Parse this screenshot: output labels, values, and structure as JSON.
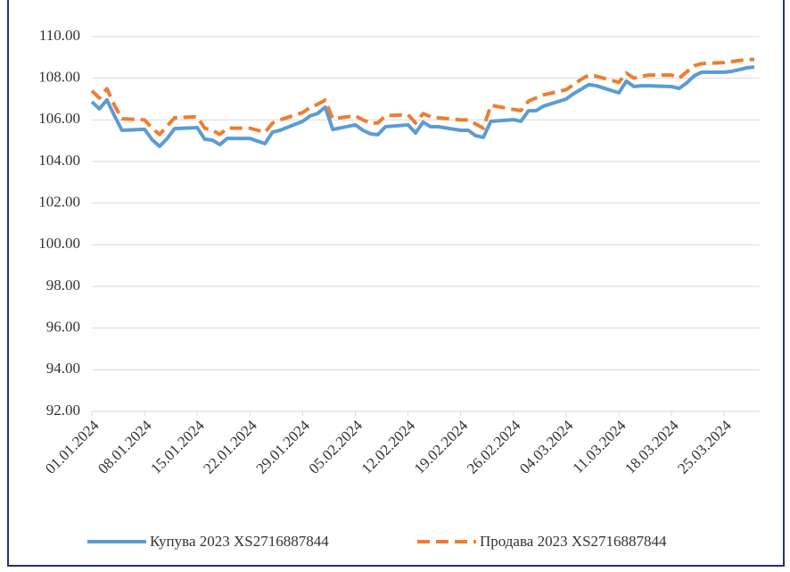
{
  "chart_data": {
    "type": "line",
    "x": [
      "01.01.2024",
      "02.01.2024",
      "03.01.2024",
      "04.01.2024",
      "05.01.2024",
      "08.01.2024",
      "09.01.2024",
      "10.01.2024",
      "11.01.2024",
      "12.01.2024",
      "15.01.2024",
      "16.01.2024",
      "17.01.2024",
      "18.01.2024",
      "19.01.2024",
      "22.01.2024",
      "23.01.2024",
      "24.01.2024",
      "25.01.2024",
      "26.01.2024",
      "29.01.2024",
      "30.01.2024",
      "31.01.2024",
      "01.02.2024",
      "02.02.2024",
      "05.02.2024",
      "06.02.2024",
      "07.02.2024",
      "08.02.2024",
      "09.02.2024",
      "12.02.2024",
      "13.02.2024",
      "14.02.2024",
      "15.02.2024",
      "16.02.2024",
      "19.02.2024",
      "20.02.2024",
      "21.02.2024",
      "22.02.2024",
      "23.02.2024",
      "26.02.2024",
      "27.02.2024",
      "28.02.2024",
      "29.02.2024",
      "01.03.2024",
      "04.03.2024",
      "05.03.2024",
      "06.03.2024",
      "07.03.2024",
      "08.03.2024",
      "11.03.2024",
      "12.03.2024",
      "13.03.2024",
      "14.03.2024",
      "15.03.2024",
      "18.03.2024",
      "19.03.2024",
      "20.03.2024",
      "21.03.2024",
      "22.03.2024",
      "25.03.2024",
      "26.03.2024",
      "27.03.2024",
      "28.03.2024",
      "29.03.2024"
    ],
    "series": [
      {
        "name": "Купува 2023 XS2716887844",
        "color": "#5b9bd5",
        "dash": false,
        "values": [
          106.87,
          106.53,
          106.96,
          106.2,
          105.5,
          105.55,
          105.05,
          104.73,
          105.1,
          105.58,
          105.63,
          105.07,
          105.03,
          104.81,
          105.11,
          105.11,
          104.98,
          104.86,
          105.41,
          105.5,
          105.93,
          106.19,
          106.31,
          106.61,
          105.54,
          105.76,
          105.5,
          105.33,
          105.29,
          105.67,
          105.76,
          105.37,
          105.89,
          105.67,
          105.67,
          105.5,
          105.5,
          105.24,
          105.16,
          105.93,
          106.01,
          105.93,
          106.44,
          106.44,
          106.66,
          107.0,
          107.26,
          107.47,
          107.69,
          107.64,
          107.3,
          107.86,
          107.6,
          107.64,
          107.64,
          107.6,
          107.51,
          107.77,
          108.11,
          108.29,
          108.29,
          108.33,
          108.41,
          108.5,
          108.54
        ]
      },
      {
        "name": "Продава 2023 XS2716887844",
        "color": "#ed7d31",
        "dash": true,
        "values": [
          107.4,
          107.05,
          107.5,
          106.7,
          106.05,
          106.0,
          105.6,
          105.3,
          105.7,
          106.1,
          106.15,
          105.6,
          105.5,
          105.3,
          105.6,
          105.6,
          105.5,
          105.4,
          105.85,
          106.0,
          106.35,
          106.6,
          106.75,
          106.95,
          106.05,
          106.2,
          106.0,
          105.85,
          105.85,
          106.2,
          106.25,
          105.85,
          106.3,
          106.15,
          106.1,
          106.0,
          106.0,
          105.8,
          105.6,
          106.7,
          106.5,
          106.45,
          106.9,
          107.05,
          107.2,
          107.45,
          107.7,
          107.95,
          108.15,
          108.1,
          107.8,
          108.25,
          108.0,
          108.1,
          108.15,
          108.15,
          108.0,
          108.3,
          108.6,
          108.7,
          108.75,
          108.8,
          108.85,
          108.9,
          108.9
        ]
      }
    ],
    "xlim": [
      "01.01.2024",
      "29.03.2024"
    ],
    "xticks": [
      "01.01.2024",
      "08.01.2024",
      "15.01.2024",
      "22.01.2024",
      "29.01.2024",
      "05.02.2024",
      "12.02.2024",
      "19.02.2024",
      "26.02.2024",
      "04.03.2024",
      "11.03.2024",
      "18.03.2024",
      "25.03.2024"
    ],
    "ylim": [
      92,
      110
    ],
    "yticks": [
      {
        "value": 92,
        "label": "92.00"
      },
      {
        "value": 94,
        "label": "94.00"
      },
      {
        "value": 96,
        "label": "96.00"
      },
      {
        "value": 98,
        "label": "98.00"
      },
      {
        "value": 100,
        "label": "100.00"
      },
      {
        "value": 102,
        "label": "102.00"
      },
      {
        "value": 104,
        "label": "104.00"
      },
      {
        "value": 106,
        "label": "106.00"
      },
      {
        "value": 108,
        "label": "108.00"
      },
      {
        "value": 110,
        "label": "110.00"
      }
    ],
    "grid": true,
    "legend": "bottom"
  }
}
